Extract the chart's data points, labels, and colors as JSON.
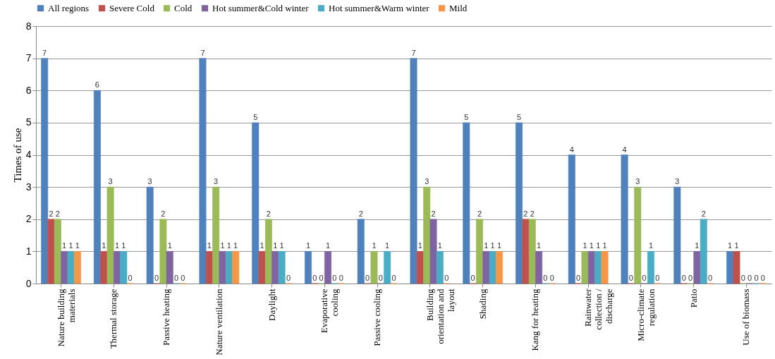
{
  "chart_data": {
    "type": "bar",
    "ylabel": "Times of use",
    "categories": [
      "Nature building materials",
      "Thermal storage",
      "Passive heating",
      "Nature ventilation",
      "Daylight",
      "Evaporative cooling",
      "Passive cooling",
      "Building orientation and layout",
      "Shading",
      "Kang for heating",
      "Rainwater collection / discharge",
      "Micro-climate regulation",
      "Patio",
      "Use of biomass"
    ],
    "series": [
      {
        "name": "All regions",
        "color": "#4f81bd",
        "values": [
          7,
          6,
          3,
          7,
          5,
          1,
          2,
          7,
          5,
          5,
          4,
          4,
          3,
          1
        ]
      },
      {
        "name": "Severe Cold",
        "color": "#c0504d",
        "values": [
          2,
          1,
          0,
          1,
          1,
          0,
          0,
          1,
          0,
          2,
          0,
          0,
          0,
          1
        ]
      },
      {
        "name": "Cold",
        "color": "#9bbb59",
        "values": [
          2,
          3,
          2,
          3,
          2,
          0,
          1,
          3,
          2,
          2,
          1,
          3,
          0,
          0
        ]
      },
      {
        "name": "Hot summer&Cold winter",
        "color": "#8064a2",
        "values": [
          1,
          1,
          1,
          1,
          1,
          1,
          0,
          2,
          1,
          1,
          1,
          0,
          1,
          0
        ]
      },
      {
        "name": "Hot summer&Warm winter",
        "color": "#4bacc6",
        "values": [
          1,
          1,
          0,
          1,
          1,
          0,
          1,
          1,
          1,
          0,
          1,
          1,
          2,
          0
        ]
      },
      {
        "name": "Mild",
        "color": "#f79646",
        "values": [
          1,
          0,
          0,
          1,
          0,
          0,
          0,
          0,
          1,
          0,
          1,
          0,
          0,
          0
        ]
      }
    ],
    "ylim": [
      0,
      8
    ],
    "yticks": [
      0,
      1,
      2,
      3,
      4,
      5,
      6,
      7,
      8
    ],
    "grid": "y",
    "legend": "top",
    "data_labels": true
  }
}
